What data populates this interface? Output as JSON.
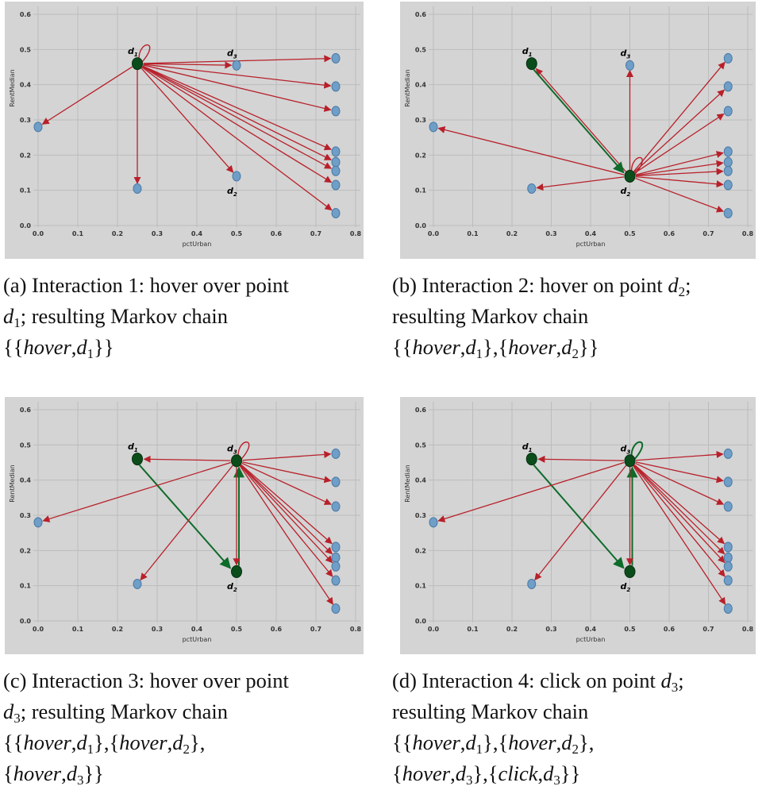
{
  "chart_data": [
    {
      "type": "scatter",
      "xlabel": "pctUrban",
      "ylabel": "RentMedian",
      "xlim": [
        0,
        0.8
      ],
      "ylim": [
        0,
        0.6
      ],
      "x_ticks": [
        "0.0",
        "0.1",
        "0.2",
        "0.3",
        "0.4",
        "0.5",
        "0.6",
        "0.7",
        "0.8"
      ],
      "y_ticks": [
        "0.0",
        "0.1",
        "0.2",
        "0.3",
        "0.4",
        "0.5",
        "0.6"
      ],
      "grid": true,
      "points": [
        {
          "x": 0.25,
          "y": 0.46
        },
        {
          "x": 0.5,
          "y": 0.14
        },
        {
          "x": 0.5,
          "y": 0.455
        },
        {
          "x": 0.0,
          "y": 0.28
        },
        {
          "x": 0.25,
          "y": 0.105
        },
        {
          "x": 0.75,
          "y": 0.475
        },
        {
          "x": 0.75,
          "y": 0.395
        },
        {
          "x": 0.75,
          "y": 0.325
        },
        {
          "x": 0.75,
          "y": 0.21
        },
        {
          "x": 0.75,
          "y": 0.18
        },
        {
          "x": 0.75,
          "y": 0.155
        },
        {
          "x": 0.75,
          "y": 0.115
        },
        {
          "x": 0.75,
          "y": 0.035
        }
      ],
      "point_labels": [
        {
          "point": 0,
          "text": "d1"
        },
        {
          "point": 2,
          "text": "d3"
        },
        {
          "point": 1,
          "text": "d2"
        }
      ],
      "highlighted": [
        0
      ],
      "edges": [
        {
          "from": 0,
          "to": 1,
          "kind": "red"
        },
        {
          "from": 0,
          "to": 2,
          "kind": "red"
        },
        {
          "from": 0,
          "to": 3,
          "kind": "red"
        },
        {
          "from": 0,
          "to": 4,
          "kind": "red"
        },
        {
          "from": 0,
          "to": 5,
          "kind": "red"
        },
        {
          "from": 0,
          "to": 6,
          "kind": "red"
        },
        {
          "from": 0,
          "to": 7,
          "kind": "red"
        },
        {
          "from": 0,
          "to": 8,
          "kind": "red"
        },
        {
          "from": 0,
          "to": 9,
          "kind": "red"
        },
        {
          "from": 0,
          "to": 10,
          "kind": "red"
        },
        {
          "from": 0,
          "to": 11,
          "kind": "red"
        },
        {
          "from": 0,
          "to": 12,
          "kind": "red"
        }
      ],
      "loops": [
        {
          "point": 0,
          "kind": "red"
        }
      ],
      "caption": {
        "lead": "(a) Interaction 1: hover over point",
        "line2_sym": "d",
        "line2_sub": "1",
        "line2_text": "; resulting Markov chain",
        "chain": "{{hover, d1}}"
      }
    },
    {
      "type": "scatter",
      "xlabel": "pctUrban",
      "ylabel": "RentMedian",
      "xlim": [
        0,
        0.8
      ],
      "ylim": [
        0,
        0.6
      ],
      "x_ticks": [
        "0.0",
        "0.1",
        "0.2",
        "0.3",
        "0.4",
        "0.5",
        "0.6",
        "0.7",
        "0.8"
      ],
      "y_ticks": [
        "0.0",
        "0.1",
        "0.2",
        "0.3",
        "0.4",
        "0.5",
        "0.6"
      ],
      "grid": true,
      "points": [
        {
          "x": 0.25,
          "y": 0.46
        },
        {
          "x": 0.5,
          "y": 0.14
        },
        {
          "x": 0.5,
          "y": 0.455
        },
        {
          "x": 0.0,
          "y": 0.28
        },
        {
          "x": 0.25,
          "y": 0.105
        },
        {
          "x": 0.75,
          "y": 0.475
        },
        {
          "x": 0.75,
          "y": 0.395
        },
        {
          "x": 0.75,
          "y": 0.325
        },
        {
          "x": 0.75,
          "y": 0.21
        },
        {
          "x": 0.75,
          "y": 0.18
        },
        {
          "x": 0.75,
          "y": 0.155
        },
        {
          "x": 0.75,
          "y": 0.115
        },
        {
          "x": 0.75,
          "y": 0.035
        }
      ],
      "point_labels": [
        {
          "point": 0,
          "text": "d1"
        },
        {
          "point": 2,
          "text": "d3"
        },
        {
          "point": 1,
          "text": "d2"
        }
      ],
      "highlighted": [
        0,
        1
      ],
      "edges": [
        {
          "from": 1,
          "to": 0,
          "kind": "red"
        },
        {
          "from": 0,
          "to": 1,
          "kind": "green"
        },
        {
          "from": 1,
          "to": 2,
          "kind": "red"
        },
        {
          "from": 1,
          "to": 3,
          "kind": "red"
        },
        {
          "from": 1,
          "to": 4,
          "kind": "red"
        },
        {
          "from": 1,
          "to": 5,
          "kind": "red"
        },
        {
          "from": 1,
          "to": 6,
          "kind": "red"
        },
        {
          "from": 1,
          "to": 7,
          "kind": "red"
        },
        {
          "from": 1,
          "to": 8,
          "kind": "red"
        },
        {
          "from": 1,
          "to": 9,
          "kind": "red"
        },
        {
          "from": 1,
          "to": 10,
          "kind": "red"
        },
        {
          "from": 1,
          "to": 11,
          "kind": "red"
        },
        {
          "from": 1,
          "to": 12,
          "kind": "red"
        }
      ],
      "loops": [
        {
          "point": 1,
          "kind": "red"
        }
      ],
      "caption": {
        "lead_text": "(b) Interaction 2: hover on point ",
        "lead_sym": "d",
        "lead_sub": "2",
        "lead_tail": ";",
        "line2": "resulting Markov chain",
        "chain": "{{hover, d1}, {hover, d2}}"
      }
    },
    {
      "type": "scatter",
      "xlabel": "pctUrban",
      "ylabel": "RentMedian",
      "xlim": [
        0,
        0.8
      ],
      "ylim": [
        0,
        0.6
      ],
      "x_ticks": [
        "0.0",
        "0.1",
        "0.2",
        "0.3",
        "0.4",
        "0.5",
        "0.6",
        "0.7",
        "0.8"
      ],
      "y_ticks": [
        "0.0",
        "0.1",
        "0.2",
        "0.3",
        "0.4",
        "0.5",
        "0.6"
      ],
      "grid": true,
      "points": [
        {
          "x": 0.25,
          "y": 0.46
        },
        {
          "x": 0.5,
          "y": 0.14
        },
        {
          "x": 0.5,
          "y": 0.455
        },
        {
          "x": 0.0,
          "y": 0.28
        },
        {
          "x": 0.25,
          "y": 0.105
        },
        {
          "x": 0.75,
          "y": 0.475
        },
        {
          "x": 0.75,
          "y": 0.395
        },
        {
          "x": 0.75,
          "y": 0.325
        },
        {
          "x": 0.75,
          "y": 0.21
        },
        {
          "x": 0.75,
          "y": 0.18
        },
        {
          "x": 0.75,
          "y": 0.155
        },
        {
          "x": 0.75,
          "y": 0.115
        },
        {
          "x": 0.75,
          "y": 0.035
        }
      ],
      "point_labels": [
        {
          "point": 0,
          "text": "d1"
        },
        {
          "point": 2,
          "text": "d3"
        },
        {
          "point": 1,
          "text": "d2"
        }
      ],
      "highlighted": [
        0,
        1,
        2
      ],
      "edges": [
        {
          "from": 0,
          "to": 1,
          "kind": "green"
        },
        {
          "from": 1,
          "to": 2,
          "kind": "green"
        },
        {
          "from": 2,
          "to": 0,
          "kind": "red"
        },
        {
          "from": 2,
          "to": 1,
          "kind": "red"
        },
        {
          "from": 2,
          "to": 3,
          "kind": "red"
        },
        {
          "from": 2,
          "to": 4,
          "kind": "red"
        },
        {
          "from": 2,
          "to": 5,
          "kind": "red"
        },
        {
          "from": 2,
          "to": 6,
          "kind": "red"
        },
        {
          "from": 2,
          "to": 7,
          "kind": "red"
        },
        {
          "from": 2,
          "to": 8,
          "kind": "red"
        },
        {
          "from": 2,
          "to": 9,
          "kind": "red"
        },
        {
          "from": 2,
          "to": 10,
          "kind": "red"
        },
        {
          "from": 2,
          "to": 11,
          "kind": "red"
        },
        {
          "from": 2,
          "to": 12,
          "kind": "red"
        }
      ],
      "loops": [
        {
          "point": 2,
          "kind": "red"
        }
      ],
      "caption": {
        "lead": "(c) Interaction 3: hover over point",
        "line2_sym": "d",
        "line2_sub": "3",
        "line2_text": "; resulting Markov chain",
        "chain": "{{hover, d1}, {hover, d2},",
        "chain2": "{hover, d3}}"
      }
    },
    {
      "type": "scatter",
      "xlabel": "pctUrban",
      "ylabel": "RentMedian",
      "xlim": [
        0,
        0.8
      ],
      "ylim": [
        0,
        0.6
      ],
      "x_ticks": [
        "0.0",
        "0.1",
        "0.2",
        "0.3",
        "0.4",
        "0.5",
        "0.6",
        "0.7",
        "0.8"
      ],
      "y_ticks": [
        "0.0",
        "0.1",
        "0.2",
        "0.3",
        "0.4",
        "0.5",
        "0.6"
      ],
      "grid": true,
      "points": [
        {
          "x": 0.25,
          "y": 0.46
        },
        {
          "x": 0.5,
          "y": 0.14
        },
        {
          "x": 0.5,
          "y": 0.455
        },
        {
          "x": 0.0,
          "y": 0.28
        },
        {
          "x": 0.25,
          "y": 0.105
        },
        {
          "x": 0.75,
          "y": 0.475
        },
        {
          "x": 0.75,
          "y": 0.395
        },
        {
          "x": 0.75,
          "y": 0.325
        },
        {
          "x": 0.75,
          "y": 0.21
        },
        {
          "x": 0.75,
          "y": 0.18
        },
        {
          "x": 0.75,
          "y": 0.155
        },
        {
          "x": 0.75,
          "y": 0.115
        },
        {
          "x": 0.75,
          "y": 0.035
        }
      ],
      "point_labels": [
        {
          "point": 0,
          "text": "d1"
        },
        {
          "point": 2,
          "text": "d3"
        },
        {
          "point": 1,
          "text": "d2"
        }
      ],
      "highlighted": [
        0,
        1,
        2
      ],
      "edges": [
        {
          "from": 0,
          "to": 1,
          "kind": "green"
        },
        {
          "from": 1,
          "to": 2,
          "kind": "green"
        },
        {
          "from": 2,
          "to": 0,
          "kind": "red"
        },
        {
          "from": 2,
          "to": 1,
          "kind": "red"
        },
        {
          "from": 2,
          "to": 3,
          "kind": "red"
        },
        {
          "from": 2,
          "to": 4,
          "kind": "red"
        },
        {
          "from": 2,
          "to": 5,
          "kind": "red"
        },
        {
          "from": 2,
          "to": 6,
          "kind": "red"
        },
        {
          "from": 2,
          "to": 7,
          "kind": "red"
        },
        {
          "from": 2,
          "to": 8,
          "kind": "red"
        },
        {
          "from": 2,
          "to": 9,
          "kind": "red"
        },
        {
          "from": 2,
          "to": 10,
          "kind": "red"
        },
        {
          "from": 2,
          "to": 11,
          "kind": "red"
        },
        {
          "from": 2,
          "to": 12,
          "kind": "red"
        }
      ],
      "loops": [
        {
          "point": 2,
          "kind": "green"
        }
      ],
      "caption": {
        "lead_text": "(d) Interaction 4: click on point ",
        "lead_sym": "d",
        "lead_sub": "3",
        "lead_tail": ";",
        "line2": "resulting Markov chain",
        "chain": "{{hover, d1}, {hover, d2},",
        "chain2": "{hover, d3}, {click, d3}}"
      }
    }
  ],
  "colors": {
    "background": "#d4d4d4",
    "grid": "#bcbcbc",
    "point_fill": "#6f9ec7",
    "point_stroke": "#4a7aa6",
    "highlight_fill": "#0b4d1a",
    "red_edge": "#b8202a",
    "green_edge": "#0e6b2a"
  }
}
